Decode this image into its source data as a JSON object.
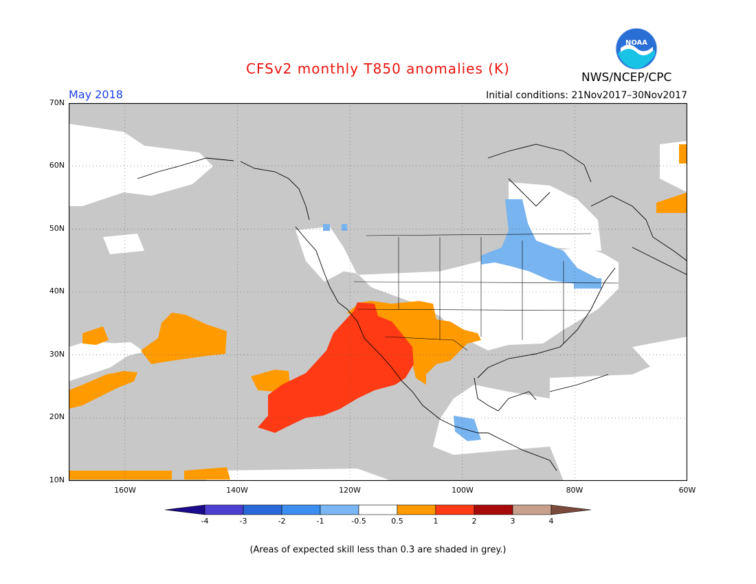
{
  "title": "CFSv2 monthly T850 anomalies (K)",
  "agency": "NWS/NCEP/CPC",
  "logo_text": "NOAA",
  "forecast_month": "May 2018",
  "initial_conditions": "Initial conditions: 21Nov2017–30Nov2017",
  "footnote": "(Areas of expected skill less than 0.3 are shaded in grey.)",
  "map": {
    "lon_range": [
      -170,
      -60
    ],
    "lat_range": [
      10,
      70
    ],
    "lat_labels": [
      "70N",
      "60N",
      "50N",
      "40N",
      "30N",
      "20N",
      "10N"
    ],
    "lon_labels": [
      "160W",
      "140W",
      "120W",
      "100W",
      "80W",
      "60W"
    ],
    "colors": {
      "grey": "#c8c8c8",
      "lightblue": "#78b4f0",
      "orange": "#ff9a00",
      "red": "#ff3a14"
    }
  },
  "colorbar": {
    "labels": [
      "-4",
      "-3",
      "-2",
      "-1",
      "-0.5",
      "0.5",
      "1",
      "2",
      "3",
      "4"
    ],
    "colors": [
      "#1a0a8c",
      "#4b3ed0",
      "#2868d8",
      "#3c8ef0",
      "#7ab6f4",
      "#ffffff",
      "#ff9a00",
      "#ff3a14",
      "#a80a0a",
      "#c8a08c",
      "#7a4a3a"
    ]
  }
}
